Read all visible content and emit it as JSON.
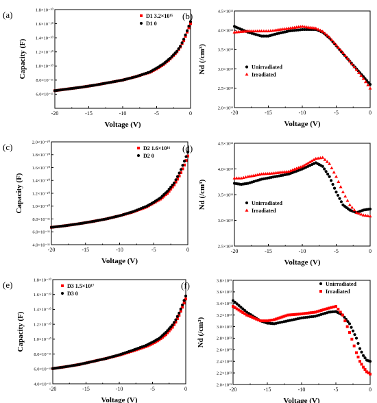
{
  "chart_data": [
    {
      "id": "a",
      "panel_label": "(a)",
      "type": "scatter",
      "xlabel": "Voltage (V)",
      "ylabel": "Capacity (F)",
      "xlim": [
        -20,
        0
      ],
      "ylim": [
        4e-11,
        1.8e-10
      ],
      "xticks": [
        -20,
        -15,
        -10,
        -5,
        0
      ],
      "xtick_labels": [
        "-20",
        "-15",
        "-10",
        "-5",
        "0"
      ],
      "yticks": [
        6e-11,
        8e-11,
        1e-10,
        1.2e-10,
        1.4e-10,
        1.6e-10,
        1.8e-10
      ],
      "ytick_labels": [
        "6.0×10⁻¹¹",
        "8.0×10⁻¹¹",
        "1.0×10⁻¹⁰",
        "1.2×10⁻¹⁰",
        "1.4×10⁻¹⁰",
        "1.6×10⁻¹⁰",
        "1.8×10⁻¹⁰"
      ],
      "legend_position": "top-right",
      "series": [
        {
          "name": "D1 3.2×10¹⁵",
          "color": "#ff0000",
          "marker": "square",
          "x": [
            -20,
            -18,
            -16,
            -14,
            -12,
            -10,
            -8,
            -6,
            -5,
            -4,
            -3,
            -2,
            -1.5,
            -1,
            -0.5,
            0
          ],
          "y": [
            6.5e-11,
            6.75e-11,
            7e-11,
            7.3e-11,
            7.65e-11,
            8e-11,
            8.5e-11,
            9.1e-11,
            9.6e-11,
            1.02e-10,
            1.1e-10,
            1.2e-10,
            1.27e-10,
            1.36e-10,
            1.48e-10,
            1.6e-10
          ]
        },
        {
          "name": "D1 0",
          "color": "#000000",
          "marker": "circle",
          "x": [
            -20,
            -18,
            -16,
            -14,
            -12,
            -10,
            -8,
            -6,
            -5,
            -4,
            -3,
            -2,
            -1.5,
            -1,
            -0.5,
            0
          ],
          "y": [
            6.5e-11,
            6.75e-11,
            7e-11,
            7.3e-11,
            7.65e-11,
            8e-11,
            8.5e-11,
            9.15e-11,
            9.7e-11,
            1.03e-10,
            1.11e-10,
            1.21e-10,
            1.28e-10,
            1.38e-10,
            1.5e-10,
            1.63e-10
          ]
        }
      ]
    },
    {
      "id": "b",
      "panel_label": "(b)",
      "type": "scatter",
      "xlabel": "Voltage (V)",
      "ylabel": "Nd (/cm³)",
      "xlim": [
        -20,
        0
      ],
      "ylim": [
        20000000000000.0,
        45000000000000.0
      ],
      "xticks": [
        -20,
        -15,
        -10,
        -5,
        0
      ],
      "xtick_labels": [
        "-20",
        "-15",
        "-10",
        "-5",
        "0"
      ],
      "yticks": [
        20000000000000.0,
        25000000000000.0,
        30000000000000.0,
        35000000000000.0,
        40000000000000.0,
        45000000000000.0
      ],
      "ytick_labels": [
        "2.0×10¹³",
        "2.5×10¹³",
        "3.0×10¹³",
        "3.5×10¹³",
        "4.0×10¹³",
        "4.5×10¹³"
      ],
      "legend_position": "center-left",
      "series": [
        {
          "name": "Unirradiated",
          "color": "#000000",
          "marker": "circle",
          "x": [
            -20,
            -18,
            -16,
            -15,
            -14,
            -12,
            -10,
            -8,
            -7,
            -6,
            -5,
            -4,
            -3,
            -2,
            -1,
            0
          ],
          "y": [
            41000000000000.0,
            39500000000000.0,
            38500000000000.0,
            38500000000000.0,
            39000000000000.0,
            39800000000000.0,
            40200000000000.0,
            40200000000000.0,
            39500000000000.0,
            38000000000000.0,
            36000000000000.0,
            34000000000000.0,
            32000000000000.0,
            30000000000000.0,
            28000000000000.0,
            26000000000000.0
          ]
        },
        {
          "name": "Irradiated",
          "color": "#ff0000",
          "marker": "triangle",
          "x": [
            -20,
            -18,
            -16,
            -15,
            -14,
            -12,
            -10,
            -8,
            -7,
            -6,
            -5,
            -4,
            -3,
            -2,
            -1,
            0
          ],
          "y": [
            39500000000000.0,
            39800000000000.0,
            39800000000000.0,
            39800000000000.0,
            40000000000000.0,
            40500000000000.0,
            41000000000000.0,
            40500000000000.0,
            39700000000000.0,
            38200000000000.0,
            36200000000000.0,
            34200000000000.0,
            32000000000000.0,
            29800000000000.0,
            27500000000000.0,
            25000000000000.0
          ]
        }
      ]
    },
    {
      "id": "c",
      "panel_label": "(c)",
      "type": "scatter",
      "xlabel": "Voltage (V)",
      "ylabel": "Capacity (F)",
      "xlim": [
        -20,
        0
      ],
      "ylim": [
        4e-11,
        2e-10
      ],
      "xticks": [
        -20,
        -15,
        -10,
        -5,
        0
      ],
      "xtick_labels": [
        "-20",
        "-15",
        "-10",
        "-5",
        "0"
      ],
      "yticks": [
        4e-11,
        6e-11,
        8e-11,
        1e-10,
        1.2e-10,
        1.4e-10,
        1.6e-10,
        1.8e-10,
        2e-10
      ],
      "ytick_labels": [
        "4.0×10⁻¹¹",
        "6.0×10⁻¹¹",
        "8.0×10⁻¹¹",
        "1.0×10⁻¹⁰",
        "1.2×10⁻¹⁰",
        "1.4×10⁻¹⁰",
        "1.6×10⁻¹⁰",
        "1.8×10⁻¹⁰",
        "2.0×10⁻¹⁰"
      ],
      "legend_position": "top-right",
      "series": [
        {
          "name": "D2 1.6×10¹⁶",
          "color": "#ff0000",
          "marker": "square",
          "x": [
            -20,
            -18,
            -16,
            -14,
            -12,
            -10,
            -8,
            -6,
            -5,
            -4,
            -3,
            -2,
            -1.5,
            -1,
            -0.5,
            0
          ],
          "y": [
            6.7e-11,
            6.95e-11,
            7.25e-11,
            7.6e-11,
            8e-11,
            8.5e-11,
            9.1e-11,
            9.9e-11,
            1.05e-10,
            1.11e-10,
            1.2e-10,
            1.33e-10,
            1.42e-10,
            1.52e-10,
            1.64e-10,
            1.78e-10
          ]
        },
        {
          "name": "D2 0",
          "color": "#000000",
          "marker": "circle",
          "x": [
            -20,
            -18,
            -16,
            -14,
            -12,
            -10,
            -8,
            -6,
            -5,
            -4,
            -3,
            -2,
            -1.5,
            -1,
            -0.5,
            0
          ],
          "y": [
            6.7e-11,
            6.95e-11,
            7.25e-11,
            7.6e-11,
            8e-11,
            8.5e-11,
            9.15e-11,
            1e-10,
            1.06e-10,
            1.13e-10,
            1.23e-10,
            1.36e-10,
            1.46e-10,
            1.57e-10,
            1.7e-10,
            1.84e-10
          ]
        }
      ]
    },
    {
      "id": "d",
      "panel_label": "(d)",
      "type": "scatter",
      "xlabel": "Voltage (V)",
      "ylabel": "Nd (/cm³)",
      "xlim": [
        -20,
        0
      ],
      "ylim": [
        25000000000000.0,
        45000000000000.0
      ],
      "xticks": [
        -20,
        -15,
        -10,
        -5,
        0
      ],
      "xtick_labels": [
        "-20",
        "-15",
        "-10",
        "-5",
        "0"
      ],
      "yticks": [
        25000000000000.0,
        30000000000000.0,
        35000000000000.0,
        40000000000000.0,
        45000000000000.0
      ],
      "ytick_labels": [
        "2.5×10¹³",
        "3.0×10¹³",
        "3.5×10¹³",
        "4.0×10¹³",
        "4.5×10¹³"
      ],
      "legend_position": "center-left",
      "series": [
        {
          "name": "Unirradiated",
          "color": "#000000",
          "marker": "circle",
          "x": [
            -20,
            -19,
            -18,
            -16,
            -14,
            -12,
            -10,
            -8,
            -7,
            -6,
            -5,
            -4,
            -3,
            -2,
            -1,
            0
          ],
          "y": [
            37200000000000.0,
            37000000000000.0,
            37200000000000.0,
            38000000000000.0,
            38500000000000.0,
            39000000000000.0,
            40000000000000.0,
            41200000000000.0,
            40500000000000.0,
            38500000000000.0,
            35500000000000.0,
            33000000000000.0,
            32000000000000.0,
            31500000000000.0,
            32000000000000.0,
            32200000000000.0
          ]
        },
        {
          "name": "Irradiated",
          "color": "#ff0000",
          "marker": "triangle",
          "x": [
            -20,
            -19,
            -18,
            -16,
            -14,
            -12,
            -10,
            -8,
            -7,
            -6,
            -5,
            -4,
            -3,
            -2,
            -1,
            0
          ],
          "y": [
            38200000000000.0,
            38200000000000.0,
            38500000000000.0,
            39000000000000.0,
            39200000000000.0,
            39500000000000.0,
            40500000000000.0,
            42000000000000.0,
            42200000000000.0,
            41000000000000.0,
            38500000000000.0,
            35500000000000.0,
            33000000000000.0,
            31500000000000.0,
            31000000000000.0,
            30800000000000.0
          ]
        }
      ]
    },
    {
      "id": "e",
      "panel_label": "(e)",
      "type": "scatter",
      "xlabel": "Voltage (V)",
      "ylabel": "Capacity (F)",
      "xlim": [
        -20,
        0
      ],
      "ylim": [
        4e-11,
        1.8e-10
      ],
      "xticks": [
        -20,
        -15,
        -10,
        -5,
        0
      ],
      "xtick_labels": [
        "-20",
        "-15",
        "-10",
        "-5",
        "0"
      ],
      "yticks": [
        4e-11,
        6e-11,
        8e-11,
        1e-10,
        1.2e-10,
        1.4e-10,
        1.6e-10,
        1.8e-10
      ],
      "ytick_labels": [
        "4.0×10⁻¹¹",
        "6.0×10⁻¹¹",
        "8.0×10⁻¹¹",
        "1.0×10⁻¹⁰",
        "1.2×10⁻¹⁰",
        "1.4×10⁻¹⁰",
        "1.6×10⁻¹⁰",
        "1.8×10⁻¹⁰"
      ],
      "legend_position": "top-left",
      "series": [
        {
          "name": "D3 1.5×10¹⁷",
          "color": "#ff0000",
          "marker": "square",
          "x": [
            -20,
            -18,
            -16,
            -14,
            -12,
            -10,
            -8,
            -6,
            -5,
            -4,
            -3,
            -2,
            -1.5,
            -1,
            -0.5,
            0
          ],
          "y": [
            6.05e-11,
            6.3e-11,
            6.6e-11,
            7e-11,
            7.4e-11,
            7.85e-11,
            8.4e-11,
            9e-11,
            9.4e-11,
            9.9e-11,
            1.06e-10,
            1.16e-10,
            1.23e-10,
            1.32e-10,
            1.43e-10,
            1.54e-10
          ]
        },
        {
          "name": "D3 0",
          "color": "#000000",
          "marker": "circle",
          "x": [
            -20,
            -18,
            -16,
            -14,
            -12,
            -10,
            -8,
            -6,
            -5,
            -4,
            -3,
            -2,
            -1.5,
            -1,
            -0.5,
            0
          ],
          "y": [
            6.05e-11,
            6.3e-11,
            6.6e-11,
            7e-11,
            7.4e-11,
            7.9e-11,
            8.5e-11,
            9.15e-11,
            9.6e-11,
            1.01e-10,
            1.09e-10,
            1.19e-10,
            1.26e-10,
            1.35e-10,
            1.46e-10,
            1.58e-10
          ]
        }
      ]
    },
    {
      "id": "f",
      "panel_label": "(f)",
      "type": "scatter",
      "xlabel": "Voltage (V)",
      "ylabel": "Nd (/cm³)",
      "xlim": [
        -20,
        0
      ],
      "ylim": [
        20000000000000.0,
        38000000000000.0
      ],
      "xticks": [
        -20,
        -15,
        -10,
        -5,
        0
      ],
      "xtick_labels": [
        "-20",
        "-15",
        "-10",
        "-5",
        "0"
      ],
      "yticks": [
        20000000000000.0,
        22000000000000.0,
        24000000000000.0,
        26000000000000.0,
        28000000000000.0,
        30000000000000.0,
        32000000000000.0,
        34000000000000.0,
        36000000000000.0,
        38000000000000.0
      ],
      "ytick_labels": [
        "2.0×10¹³",
        "2.2×10¹³",
        "2.4×10¹³",
        "2.6×10¹³",
        "2.8×10¹³",
        "3.0×10¹³",
        "3.2×10¹³",
        "3.4×10¹³",
        "3.6×10¹³",
        "3.8×10¹³"
      ],
      "legend_position": "top-right",
      "series": [
        {
          "name": "Unirradiated",
          "color": "#000000",
          "marker": "circle",
          "x": [
            -20,
            -18,
            -16,
            -15,
            -14,
            -12,
            -10,
            -8,
            -6,
            -5,
            -4,
            -3,
            -2,
            -1.5,
            -1,
            -0.5,
            0
          ],
          "y": [
            34500000000000.0,
            32500000000000.0,
            31000000000000.0,
            30600000000000.0,
            30500000000000.0,
            31000000000000.0,
            31500000000000.0,
            31800000000000.0,
            32500000000000.0,
            32600000000000.0,
            32000000000000.0,
            30500000000000.0,
            28000000000000.0,
            26200000000000.0,
            25000000000000.0,
            24200000000000.0,
            24000000000000.0
          ]
        },
        {
          "name": "Irradiated",
          "color": "#ff0000",
          "marker": "square",
          "x": [
            -20,
            -18,
            -16,
            -15,
            -14,
            -12,
            -10,
            -8,
            -6,
            -5,
            -4,
            -3,
            -2,
            -1.5,
            -1,
            -0.5,
            0
          ],
          "y": [
            33500000000000.0,
            32000000000000.0,
            31000000000000.0,
            31000000000000.0,
            31200000000000.0,
            32000000000000.0,
            32200000000000.0,
            32500000000000.0,
            33200000000000.0,
            33500000000000.0,
            32000000000000.0,
            29000000000000.0,
            25500000000000.0,
            24000000000000.0,
            23000000000000.0,
            22200000000000.0,
            21800000000000.0
          ]
        }
      ]
    }
  ]
}
